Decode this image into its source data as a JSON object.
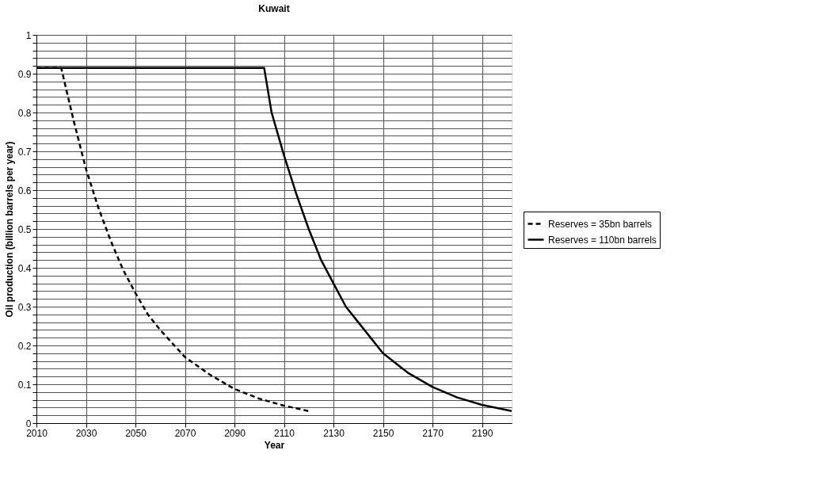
{
  "chart_data": {
    "type": "line",
    "title": "Kuwait",
    "xlabel": "Year",
    "ylabel": "Oil production (billion barrels per year)",
    "xlim": [
      2010,
      2202
    ],
    "xticks": [
      2010,
      2030,
      2050,
      2070,
      2090,
      2110,
      2130,
      2150,
      2170,
      2190
    ],
    "ylim": [
      0,
      1
    ],
    "yticks": [
      0,
      {
        "value": 0.02,
        "label": null
      },
      {
        "value": 0.04,
        "label": null
      },
      {
        "value": 0.06,
        "label": null
      },
      {
        "value": 0.08,
        "label": null
      },
      0.1,
      {
        "value": 0.12,
        "label": null
      },
      {
        "value": 0.14,
        "label": null
      },
      {
        "value": 0.16,
        "label": null
      },
      {
        "value": 0.18,
        "label": null
      },
      0.2,
      {
        "value": 0.22,
        "label": null
      },
      {
        "value": 0.24,
        "label": null
      },
      {
        "value": 0.26,
        "label": null
      },
      {
        "value": 0.28,
        "label": null
      },
      0.3,
      {
        "value": 0.32,
        "label": null
      },
      {
        "value": 0.34,
        "label": null
      },
      {
        "value": 0.36,
        "label": null
      },
      {
        "value": 0.38,
        "label": null
      },
      0.4,
      {
        "value": 0.42,
        "label": null
      },
      {
        "value": 0.44,
        "label": null
      },
      {
        "value": 0.46,
        "label": null
      },
      {
        "value": 0.48,
        "label": null
      },
      0.5,
      {
        "value": 0.52,
        "label": null
      },
      {
        "value": 0.54,
        "label": null
      },
      {
        "value": 0.56,
        "label": null
      },
      {
        "value": 0.58,
        "label": null
      },
      0.6,
      {
        "value": 0.62,
        "label": null
      },
      {
        "value": 0.64,
        "label": null
      },
      {
        "value": 0.66,
        "label": null
      },
      {
        "value": 0.68,
        "label": null
      },
      0.7,
      {
        "value": 0.72,
        "label": null
      },
      {
        "value": 0.74,
        "label": null
      },
      {
        "value": 0.76,
        "label": null
      },
      {
        "value": 0.78,
        "label": null
      },
      0.8,
      {
        "value": 0.82,
        "label": null
      },
      {
        "value": 0.84,
        "label": null
      },
      {
        "value": 0.86,
        "label": null
      },
      {
        "value": 0.88,
        "label": null
      },
      0.9,
      {
        "value": 0.92,
        "label": null
      },
      {
        "value": 0.94,
        "label": null
      },
      {
        "value": 0.96,
        "label": null
      },
      {
        "value": 0.98,
        "label": null
      },
      1
    ],
    "grid": true,
    "legend": "right",
    "marker": "none",
    "series": [
      {
        "name": "Reserves = 35bn barrels",
        "color": "#000000",
        "line_style": "dashed",
        "x": [
          2010,
          2020,
          2025,
          2030,
          2035,
          2040,
          2045,
          2050,
          2055,
          2060,
          2070,
          2080,
          2090,
          2100,
          2110,
          2120
        ],
        "values": [
          0.915,
          0.915,
          0.78,
          0.655,
          0.555,
          0.47,
          0.395,
          0.335,
          0.28,
          0.24,
          0.17,
          0.125,
          0.088,
          0.063,
          0.045,
          0.031
        ]
      },
      {
        "name": "Reserves = 110bn barrels",
        "color": "#000000",
        "line_style": "solid",
        "x": [
          2010,
          2102,
          2105,
          2110,
          2115,
          2120,
          2125,
          2130,
          2135,
          2140,
          2150,
          2160,
          2170,
          2180,
          2190,
          2202
        ],
        "values": [
          0.915,
          0.915,
          0.8,
          0.69,
          0.59,
          0.5,
          0.42,
          0.36,
          0.3,
          0.26,
          0.18,
          0.13,
          0.093,
          0.066,
          0.047,
          0.031
        ]
      }
    ]
  }
}
